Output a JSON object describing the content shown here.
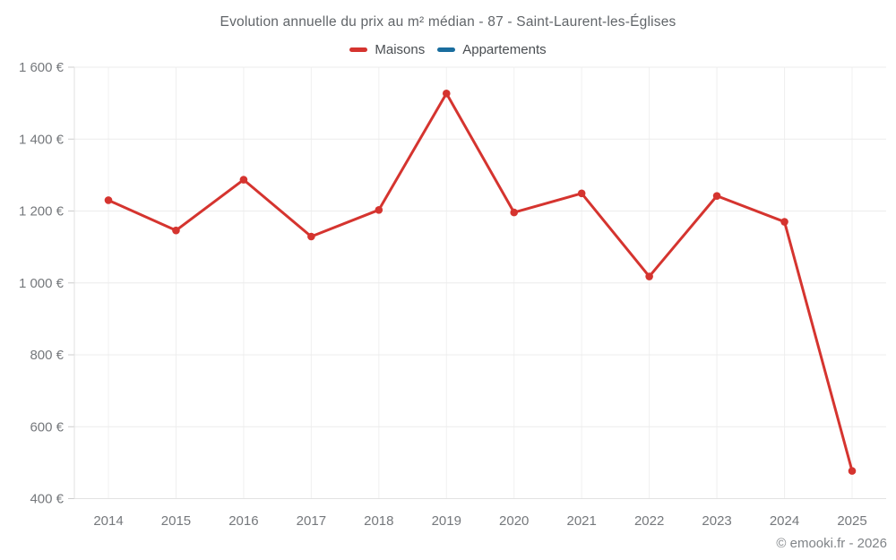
{
  "chart": {
    "title": "Evolution annuelle du prix au m² médian - 87 - Saint-Laurent-les-Églises"
  },
  "footer": {
    "text": "© emooki.fr - 2026"
  },
  "chart_data": {
    "type": "line",
    "title": "Evolution annuelle du prix au m² médian - 87 - Saint-Laurent-les-Églises",
    "categories": [
      "2014",
      "2015",
      "2016",
      "2017",
      "2018",
      "2019",
      "2020",
      "2021",
      "2022",
      "2023",
      "2024",
      "2025"
    ],
    "series": [
      {
        "name": "Maisons",
        "color": "#d5342f",
        "values": [
          1230,
          1146,
          1287,
          1129,
          1203,
          1527,
          1196,
          1249,
          1018,
          1242,
          1170,
          477
        ]
      },
      {
        "name": "Appartements",
        "color": "#1a6d9e",
        "values": []
      }
    ],
    "xlabel": "",
    "ylabel": "",
    "ylim": [
      400,
      1600
    ],
    "yticks": {
      "values": [
        400,
        600,
        800,
        1000,
        1200,
        1400,
        1600
      ],
      "labels": [
        "400 €",
        "600 €",
        "800 €",
        "1 000 €",
        "1 200 €",
        "1 400 €",
        "1 600 €"
      ]
    },
    "grid": true,
    "legend_position": "top",
    "marker": "circle"
  }
}
